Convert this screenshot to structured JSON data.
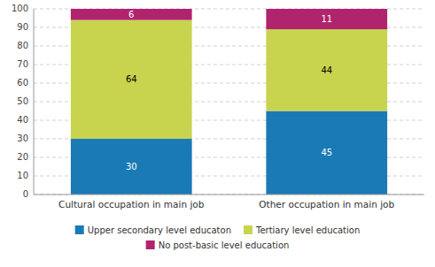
{
  "chart_data": {
    "type": "bar",
    "stacked": true,
    "categories": [
      "Cultural occupation in main job",
      "Other occupation in main job"
    ],
    "series": [
      {
        "name": "Upper secondary level educaton",
        "color": "#1a7ab5",
        "values": [
          30,
          45
        ]
      },
      {
        "name": "Tertiary level education",
        "color": "#c8d44e",
        "values": [
          64,
          44
        ]
      },
      {
        "name": "No post-basic level education",
        "color": "#b0246e",
        "values": [
          6,
          11
        ]
      }
    ],
    "ylim": [
      0,
      100
    ],
    "yticks": [
      0,
      10,
      20,
      30,
      40,
      50,
      60,
      70,
      80,
      90,
      100
    ],
    "grid": true,
    "data_labels": true,
    "legend": "bottom"
  }
}
